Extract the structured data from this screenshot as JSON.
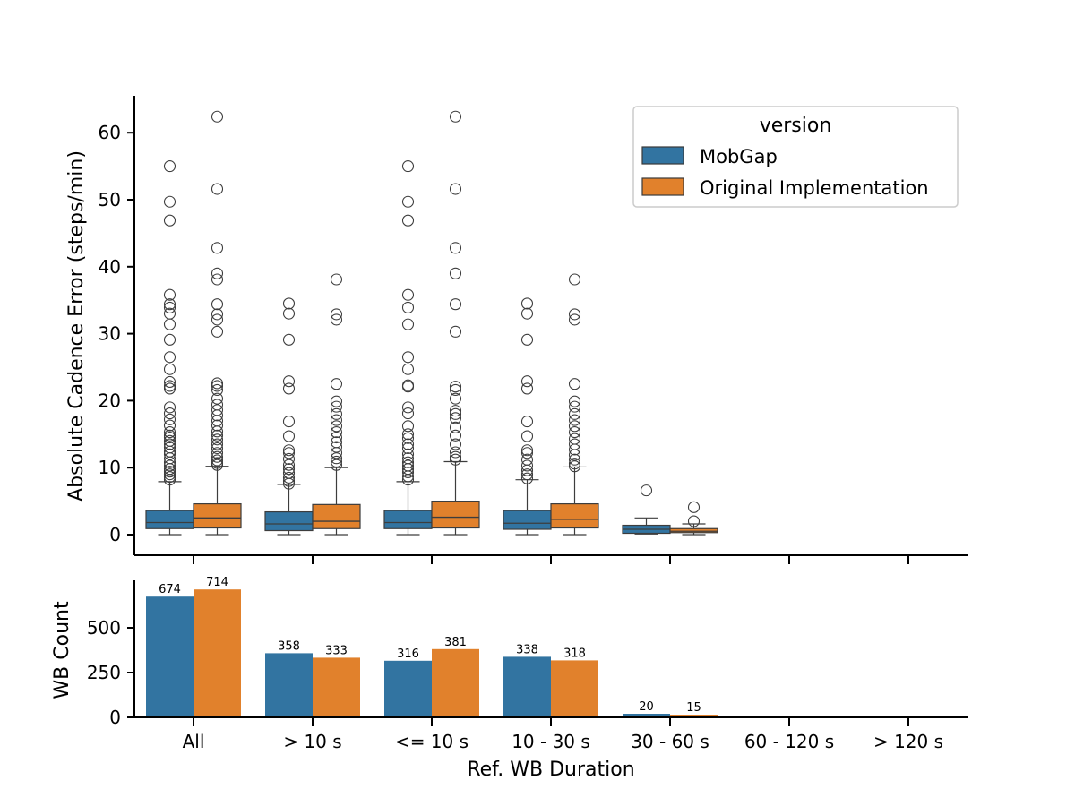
{
  "chart_data": [
    {
      "type": "box",
      "ylabel": "Absolute Cadence Error (steps/min)",
      "ylim": [
        -3,
        66
      ],
      "yticks": [
        0,
        10,
        20,
        30,
        40,
        50,
        60
      ],
      "categories": [
        "All",
        "> 10 s",
        "<= 10 s",
        "10 - 30 s",
        "30 - 60 s",
        "60 - 120 s",
        "> 120 s"
      ],
      "legend": {
        "title": "version",
        "position": "top-right"
      },
      "series": [
        {
          "name": "MobGap",
          "color": "#3274a1",
          "boxes": [
            {
              "category": "All",
              "whisker_low": 0,
              "q1": 0.9,
              "median": 1.8,
              "q3": 3.6,
              "whisker_high": 7.9,
              "outliers": [
                55.0,
                49.7,
                46.9,
                35.8,
                34.4,
                33.9,
                33.0,
                31.4,
                29.1,
                26.5,
                24.7,
                22.8,
                22.2,
                21.8,
                19.0,
                18.1,
                17.2,
                16.3,
                15.3,
                14.8,
                14.5,
                14.0,
                13.5,
                13.0,
                12.4,
                12.0,
                11.4,
                10.8,
                10.3,
                9.8,
                9.4,
                9.0,
                8.6,
                8.2
              ]
            },
            {
              "category": "> 10 s",
              "whisker_low": 0,
              "q1": 0.6,
              "median": 1.6,
              "q3": 3.4,
              "whisker_high": 7.5,
              "outliers": [
                34.5,
                33.0,
                29.1,
                22.9,
                21.8,
                16.9,
                14.7,
                12.6,
                12.2,
                11.3,
                10.4,
                9.8,
                9.2,
                8.5,
                8.0,
                7.6
              ]
            },
            {
              "category": "<= 10 s",
              "whisker_low": 0,
              "q1": 0.9,
              "median": 1.8,
              "q3": 3.6,
              "whisker_high": 7.9,
              "outliers": [
                55.0,
                49.7,
                46.9,
                35.8,
                33.9,
                31.4,
                26.5,
                24.7,
                22.3,
                22.1,
                19.0,
                18.1,
                16.2,
                15.0,
                14.4,
                13.5,
                12.9,
                12.0,
                11.4,
                10.8,
                10.3,
                9.8,
                9.3,
                8.7,
                8.2
              ]
            },
            {
              "category": "10 - 30 s",
              "whisker_low": 0,
              "q1": 0.8,
              "median": 1.7,
              "q3": 3.6,
              "whisker_high": 8.2,
              "outliers": [
                34.5,
                33.0,
                29.1,
                22.9,
                21.8,
                16.9,
                14.7,
                12.6,
                12.2,
                11.2,
                10.3,
                9.6,
                9.0,
                8.4
              ]
            },
            {
              "category": "30 - 60 s",
              "whisker_low": 0.1,
              "q1": 0.2,
              "median": 0.8,
              "q3": 1.4,
              "whisker_high": 2.5,
              "outliers": [
                6.6
              ]
            }
          ]
        },
        {
          "name": "Original Implementation",
          "color": "#e1812c",
          "boxes": [
            {
              "category": "All",
              "whisker_low": 0,
              "q1": 1.0,
              "median": 2.5,
              "q3": 4.6,
              "whisker_high": 10.2,
              "outliers": [
                62.4,
                51.6,
                42.8,
                39.0,
                38.1,
                34.4,
                32.9,
                32.1,
                30.3,
                22.6,
                22.2,
                21.6,
                20.3,
                19.4,
                18.6,
                17.8,
                17.0,
                16.3,
                15.4,
                14.8,
                14.2,
                13.5,
                12.9,
                12.2,
                11.6,
                11.1,
                10.7,
                10.4
              ]
            },
            {
              "category": "> 10 s",
              "whisker_low": 0,
              "q1": 0.9,
              "median": 2.0,
              "q3": 4.5,
              "whisker_high": 10.0,
              "outliers": [
                38.1,
                32.9,
                32.1,
                22.5,
                19.9,
                19.1,
                18.0,
                17.1,
                16.2,
                15.3,
                14.5,
                13.8,
                13.1,
                12.2,
                11.4,
                10.9,
                10.4
              ]
            },
            {
              "category": "<= 10 s",
              "whisker_low": 0,
              "q1": 1.0,
              "median": 2.6,
              "q3": 5.0,
              "whisker_high": 10.9,
              "outliers": [
                62.4,
                51.6,
                42.8,
                39.0,
                34.4,
                30.3,
                22.1,
                21.6,
                20.3,
                18.5,
                18.0,
                17.4,
                16.0,
                14.8,
                13.5,
                12.3,
                11.6,
                11.2
              ]
            },
            {
              "category": "10 - 30 s",
              "whisker_low": 0,
              "q1": 1.0,
              "median": 2.3,
              "q3": 4.6,
              "whisker_high": 10.1,
              "outliers": [
                38.1,
                32.9,
                32.1,
                22.5,
                19.9,
                19.1,
                18.0,
                17.1,
                16.2,
                15.3,
                14.3,
                13.5,
                12.7,
                11.9,
                11.2,
                10.6,
                10.2
              ]
            },
            {
              "category": "30 - 60 s",
              "whisker_low": 0,
              "q1": 0.3,
              "median": 0.5,
              "q3": 0.9,
              "whisker_high": 1.6,
              "outliers": [
                4.1,
                2.0
              ]
            }
          ]
        }
      ]
    },
    {
      "type": "bar",
      "xlabel": "Ref. WB Duration",
      "ylabel": "WB Count",
      "ylim": [
        0,
        750
      ],
      "yticks": [
        0,
        250,
        500
      ],
      "categories": [
        "All",
        "> 10 s",
        "<= 10 s",
        "10 - 30 s",
        "30 - 60 s",
        "60 - 120 s",
        "> 120 s"
      ],
      "series": [
        {
          "name": "MobGap",
          "color": "#3274a1",
          "values": [
            674,
            358,
            316,
            338,
            20,
            0,
            0
          ],
          "labels": [
            "674",
            "358",
            "316",
            "338",
            "20",
            "",
            ""
          ]
        },
        {
          "name": "Original Implementation",
          "color": "#e1812c",
          "values": [
            714,
            333,
            381,
            318,
            15,
            0,
            0
          ],
          "labels": [
            "714",
            "333",
            "381",
            "318",
            "15",
            "",
            ""
          ]
        }
      ]
    }
  ]
}
